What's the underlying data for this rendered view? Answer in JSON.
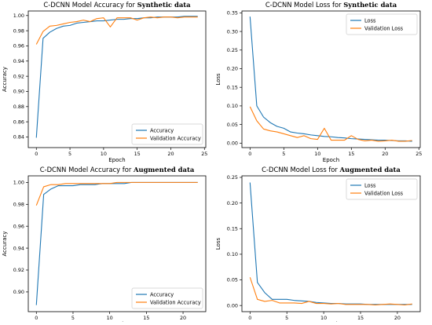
{
  "colors": {
    "series_1": "#1f77b4",
    "series_2": "#ff7f0e",
    "frame": "#000000",
    "legend_border": "#cccccc"
  },
  "chart_data": [
    {
      "type": "line",
      "title_prefix": "C-DCNN Model Accuracy  for ",
      "title_emphasis": "Synthetic data",
      "xlabel": "Epoch",
      "ylabel": "Accuracy",
      "xlim": [
        -1.2,
        25.2
      ],
      "ylim": [
        0.826,
        1.006
      ],
      "xticks": [
        0,
        5,
        10,
        15,
        20,
        25
      ],
      "xtick_labels": [
        "0",
        "5",
        "10",
        "15",
        "20",
        "25"
      ],
      "yticks": [
        0.84,
        0.86,
        0.88,
        0.9,
        0.92,
        0.94,
        0.96,
        0.98,
        1.0
      ],
      "ytick_labels": [
        "0.84",
        "0.86",
        "0.88",
        "0.90",
        "0.92",
        "0.94",
        "0.96",
        "0.98",
        "1.00"
      ],
      "grid": false,
      "legend_position": "lower-right",
      "series": [
        {
          "name": "Accuracy",
          "color": "#1f77b4",
          "x": [
            0,
            1,
            2,
            3,
            4,
            5,
            6,
            7,
            8,
            9,
            10,
            11,
            12,
            13,
            14,
            15,
            16,
            17,
            18,
            19,
            20,
            21,
            22,
            23,
            24
          ],
          "y": [
            0.839,
            0.97,
            0.978,
            0.983,
            0.986,
            0.987,
            0.99,
            0.991,
            0.992,
            0.993,
            0.993,
            0.994,
            0.995,
            0.995,
            0.996,
            0.996,
            0.997,
            0.997,
            0.998,
            0.998,
            0.998,
            0.998,
            0.999,
            0.999,
            0.999
          ]
        },
        {
          "name": "Validation Accuracy",
          "color": "#ff7f0e",
          "x": [
            0,
            1,
            2,
            3,
            4,
            5,
            6,
            7,
            8,
            9,
            10,
            11,
            12,
            13,
            14,
            15,
            16,
            17,
            18,
            19,
            20,
            21,
            22,
            23,
            24
          ],
          "y": [
            0.962,
            0.979,
            0.986,
            0.987,
            0.989,
            0.991,
            0.992,
            0.994,
            0.992,
            0.996,
            0.997,
            0.985,
            0.997,
            0.997,
            0.997,
            0.994,
            0.997,
            0.998,
            0.997,
            0.998,
            0.998,
            0.997,
            0.998,
            0.998,
            0.998
          ]
        }
      ]
    },
    {
      "type": "line",
      "title_prefix": "C-DCNN Model Loss  for ",
      "title_emphasis": "Synthetic data",
      "xlabel": "Epoch",
      "ylabel": "Loss",
      "xlim": [
        -1.2,
        25.2
      ],
      "ylim": [
        -0.012,
        0.355
      ],
      "xticks": [
        0,
        5,
        10,
        15,
        20,
        25
      ],
      "xtick_labels": [
        "0",
        "5",
        "10",
        "15",
        "20",
        "25"
      ],
      "yticks": [
        0.0,
        0.05,
        0.1,
        0.15,
        0.2,
        0.25,
        0.3,
        0.35
      ],
      "ytick_labels": [
        "0.00",
        "0.05",
        "0.10",
        "0.15",
        "0.20",
        "0.25",
        "0.30",
        "0.35"
      ],
      "grid": false,
      "legend_position": "upper-right",
      "series": [
        {
          "name": "Loss",
          "color": "#1f77b4",
          "x": [
            0,
            1,
            2,
            3,
            4,
            5,
            6,
            7,
            8,
            9,
            10,
            11,
            12,
            13,
            14,
            15,
            16,
            17,
            18,
            19,
            20,
            21,
            22,
            23,
            24
          ],
          "y": [
            0.34,
            0.1,
            0.07,
            0.055,
            0.045,
            0.04,
            0.03,
            0.027,
            0.025,
            0.022,
            0.02,
            0.018,
            0.017,
            0.015,
            0.014,
            0.012,
            0.011,
            0.01,
            0.009,
            0.008,
            0.008,
            0.007,
            0.006,
            0.006,
            0.005
          ]
        },
        {
          "name": "Validation Loss",
          "color": "#ff7f0e",
          "x": [
            0,
            1,
            2,
            3,
            4,
            5,
            6,
            7,
            8,
            9,
            10,
            11,
            12,
            13,
            14,
            15,
            16,
            17,
            18,
            19,
            20,
            21,
            22,
            23,
            24
          ],
          "y": [
            0.098,
            0.06,
            0.038,
            0.033,
            0.03,
            0.025,
            0.02,
            0.015,
            0.02,
            0.012,
            0.01,
            0.04,
            0.008,
            0.008,
            0.008,
            0.02,
            0.01,
            0.006,
            0.008,
            0.005,
            0.006,
            0.008,
            0.005,
            0.005,
            0.007
          ]
        }
      ]
    },
    {
      "type": "line",
      "title_prefix": "C-DCNN Model Accuracy for ",
      "title_emphasis": "Augmented data",
      "xlabel": "Epoch",
      "ylabel": "Accuracy",
      "xlim": [
        -1.1,
        23.1
      ],
      "ylim": [
        0.882,
        1.006
      ],
      "xticks": [
        0,
        5,
        10,
        15,
        20
      ],
      "xtick_labels": [
        "0",
        "5",
        "10",
        "15",
        "20"
      ],
      "yticks": [
        0.9,
        0.92,
        0.94,
        0.96,
        0.98,
        1.0
      ],
      "ytick_labels": [
        "0.90",
        "0.92",
        "0.94",
        "0.96",
        "0.98",
        "1.00"
      ],
      "grid": false,
      "legend_position": "lower-right",
      "series": [
        {
          "name": "Accuracy",
          "color": "#1f77b4",
          "x": [
            0,
            1,
            2,
            3,
            4,
            5,
            6,
            7,
            8,
            9,
            10,
            11,
            12,
            13,
            14,
            15,
            16,
            17,
            18,
            19,
            20,
            21,
            22
          ],
          "y": [
            0.888,
            0.989,
            0.994,
            0.997,
            0.997,
            0.997,
            0.998,
            0.998,
            0.998,
            0.999,
            0.999,
            0.999,
            0.999,
            1.0,
            1.0,
            1.0,
            1.0,
            1.0,
            1.0,
            1.0,
            1.0,
            1.0,
            1.0
          ]
        },
        {
          "name": "Validation Accuracy",
          "color": "#ff7f0e",
          "x": [
            0,
            1,
            2,
            3,
            4,
            5,
            6,
            7,
            8,
            9,
            10,
            11,
            12,
            13,
            14,
            15,
            16,
            17,
            18,
            19,
            20,
            21,
            22
          ],
          "y": [
            0.979,
            0.996,
            0.998,
            0.998,
            0.999,
            0.999,
            0.999,
            0.999,
            0.999,
            0.999,
            0.999,
            1.0,
            1.0,
            1.0,
            1.0,
            1.0,
            1.0,
            1.0,
            1.0,
            1.0,
            1.0,
            1.0,
            1.0
          ]
        }
      ]
    },
    {
      "type": "line",
      "title_prefix": "C-DCNN Model Loss  for ",
      "title_emphasis": "Augmented data",
      "xlabel": "Epoch",
      "ylabel": "Loss",
      "xlim": [
        -1.1,
        23.1
      ],
      "ylim": [
        -0.012,
        0.253
      ],
      "xticks": [
        0,
        5,
        10,
        15,
        20
      ],
      "xtick_labels": [
        "0",
        "5",
        "10",
        "15",
        "20"
      ],
      "yticks": [
        0.0,
        0.05,
        0.1,
        0.15,
        0.2,
        0.25
      ],
      "ytick_labels": [
        "0.00",
        "0.05",
        "0.10",
        "0.15",
        "0.20",
        "0.25"
      ],
      "grid": false,
      "legend_position": "upper-right",
      "series": [
        {
          "name": "Loss",
          "color": "#1f77b4",
          "x": [
            0,
            1,
            2,
            3,
            4,
            5,
            6,
            7,
            8,
            9,
            10,
            11,
            12,
            13,
            14,
            15,
            16,
            17,
            18,
            19,
            20,
            21,
            22
          ],
          "y": [
            0.24,
            0.045,
            0.025,
            0.012,
            0.012,
            0.012,
            0.01,
            0.009,
            0.008,
            0.006,
            0.005,
            0.004,
            0.004,
            0.003,
            0.003,
            0.003,
            0.002,
            0.002,
            0.002,
            0.002,
            0.002,
            0.002,
            0.002
          ]
        },
        {
          "name": "Validation Loss",
          "color": "#ff7f0e",
          "x": [
            0,
            1,
            2,
            3,
            4,
            5,
            6,
            7,
            8,
            9,
            10,
            11,
            12,
            13,
            14,
            15,
            16,
            17,
            18,
            19,
            20,
            21,
            22
          ],
          "y": [
            0.055,
            0.012,
            0.008,
            0.01,
            0.005,
            0.005,
            0.005,
            0.004,
            0.008,
            0.004,
            0.004,
            0.003,
            0.004,
            0.002,
            0.002,
            0.002,
            0.002,
            0.001,
            0.002,
            0.003,
            0.002,
            0.001,
            0.003
          ]
        }
      ]
    }
  ]
}
